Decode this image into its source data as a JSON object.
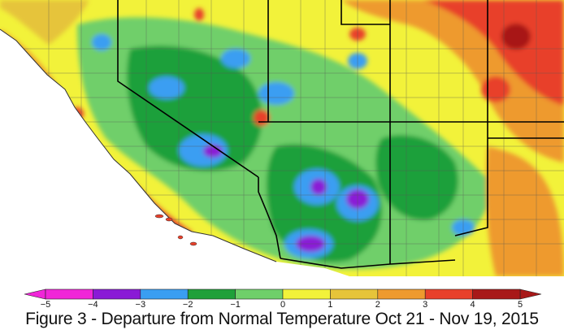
{
  "caption": "Figure 3 - Departure from Normal Temperature Oct 21 - Nov 19, 2015",
  "legend": {
    "min": -5,
    "max": 5,
    "step": 1,
    "tick_labels": [
      "−5",
      "−4",
      "−3",
      "−2",
      "−1",
      "0",
      "1",
      "2",
      "3",
      "4",
      "5"
    ],
    "bins": [
      {
        "from": -5,
        "to": -4,
        "color": "#f026d8"
      },
      {
        "from": -4,
        "to": -3,
        "color": "#8a1ad6"
      },
      {
        "from": -3,
        "to": -2,
        "color": "#3a9ef2"
      },
      {
        "from": -2,
        "to": -1,
        "color": "#1fa03a"
      },
      {
        "from": -1,
        "to": 0,
        "color": "#6fcf6a"
      },
      {
        "from": 0,
        "to": 1,
        "color": "#f2f23a"
      },
      {
        "from": 1,
        "to": 2,
        "color": "#e6c43a"
      },
      {
        "from": 2,
        "to": 3,
        "color": "#ee9a2e"
      },
      {
        "from": 3,
        "to": 4,
        "color": "#e8402a"
      },
      {
        "from": 4,
        "to": 5,
        "color": "#a81818"
      }
    ]
  },
  "colors": {
    "ocean": "#ffffff",
    "county_lines": "#555555",
    "state_lines": "#000000"
  }
}
